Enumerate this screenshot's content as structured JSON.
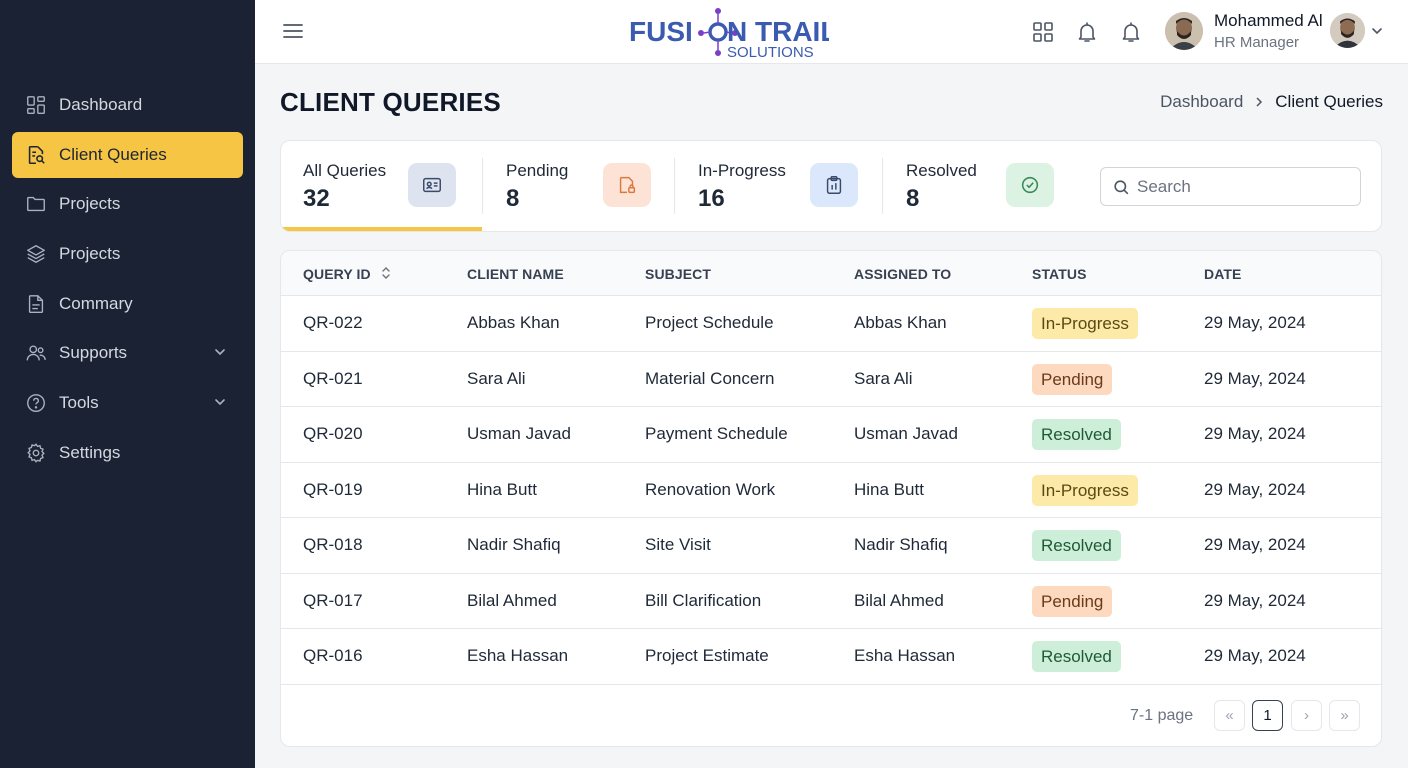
{
  "brand": {
    "name": "FUSION TRAIL",
    "name_part1": "FUSI",
    "name_part2": "N TRAIL",
    "sub": "SOLUTIONS",
    "color_primary": "#3a5bb0",
    "color_accent": "#7a3fc8"
  },
  "colors": {
    "sidebar_bg": "#1a2233",
    "accent": "#f6c544"
  },
  "sidebar": {
    "items": [
      {
        "label": "Dashboard",
        "icon": "dashboard-grid-icon",
        "active": false,
        "has_submenu": false
      },
      {
        "label": "Client Queries",
        "icon": "document-search-icon",
        "active": true,
        "has_submenu": false
      },
      {
        "label": "Projects",
        "icon": "folder-icon",
        "active": false,
        "has_submenu": false
      },
      {
        "label": "Projects",
        "icon": "layers-icon",
        "active": false,
        "has_submenu": false
      },
      {
        "label": "Commary",
        "icon": "file-text-icon",
        "active": false,
        "has_submenu": false
      },
      {
        "label": "Supports",
        "icon": "users-icon",
        "active": false,
        "has_submenu": true
      },
      {
        "label": "Tools",
        "icon": "help-circle-icon",
        "active": false,
        "has_submenu": true
      },
      {
        "label": "Settings",
        "icon": "gear-icon",
        "active": false,
        "has_submenu": false
      }
    ]
  },
  "header": {
    "user_name": "Mohammed Al",
    "user_role": "HR Manager",
    "icons": [
      "hamburger-icon",
      "apps-grid-icon",
      "bell-icon",
      "bell-icon",
      "chevron-down-icon"
    ]
  },
  "page": {
    "title": "CLIENT QUERIES",
    "breadcrumb": {
      "parent": "Dashboard",
      "current": "Client Queries"
    }
  },
  "stats": [
    {
      "label": "All Queries",
      "value": "32",
      "icon": "id-card-icon",
      "icon_bg": "#dde3ef",
      "icon_color": "#3b4a6b"
    },
    {
      "label": "Pending",
      "value": "8",
      "icon": "document-lock-icon",
      "icon_bg": "#fde3d6",
      "icon_color": "#d9793f"
    },
    {
      "label": "In-Progress",
      "value": "16",
      "icon": "clipboard-icon",
      "icon_bg": "#dbe8fb",
      "icon_color": "#3b4a6b"
    },
    {
      "label": "Resolved",
      "value": "8",
      "icon": "check-circle-icon",
      "icon_bg": "#dcf3e3",
      "icon_color": "#3a8a5a"
    }
  ],
  "search": {
    "placeholder": "Search",
    "value": ""
  },
  "table": {
    "columns": [
      "QUERY ID",
      "CLIENT NAME",
      "SUBJECT",
      "ASSIGNED TO",
      "STATUS",
      "DATE"
    ],
    "rows": [
      {
        "id": "QR-022",
        "client": "Abbas Khan",
        "subject": "Project Schedule",
        "assigned": "Abbas Khan",
        "status": "In-Progress",
        "date": "29 May, 2024"
      },
      {
        "id": "QR-021",
        "client": "Sara Ali",
        "subject": "Material Concern",
        "assigned": "Sara Ali",
        "status": "Pending",
        "date": "29 May, 2024"
      },
      {
        "id": "QR-020",
        "client": "Usman Javad",
        "subject": "Payment Schedule",
        "assigned": "Usman Javad",
        "status": "Resolved",
        "date": "29 May, 2024"
      },
      {
        "id": "QR-019",
        "client": "Hina Butt",
        "subject": "Renovation Work",
        "assigned": "Hina Butt",
        "status": "In-Progress",
        "date": "29 May, 2024"
      },
      {
        "id": "QR-018",
        "client": "Nadir Shafiq",
        "subject": "Site Visit",
        "assigned": "Nadir Shafiq",
        "status": "Resolved",
        "date": "29 May, 2024"
      },
      {
        "id": "QR-017",
        "client": "Bilal Ahmed",
        "subject": "Bill Clarification",
        "assigned": "Bilal Ahmed",
        "status": "Pending",
        "date": "29 May, 2024"
      },
      {
        "id": "QR-016",
        "client": "Esha Hassan",
        "subject": "Project Estimate",
        "assigned": "Esha Hassan",
        "status": "Resolved",
        "date": "29 May, 2024"
      }
    ],
    "status_colors": {
      "In-Progress": {
        "bg": "#fde9a8",
        "fg": "#5a4a12"
      },
      "Pending": {
        "bg": "#fdd9bf",
        "fg": "#6a3a1a"
      },
      "Resolved": {
        "bg": "#cdeed8",
        "fg": "#1f5a36"
      }
    }
  },
  "pagination": {
    "text": "7-1 page",
    "current_page": "1",
    "first": "«",
    "prev": "‹",
    "next": "›",
    "last": "»"
  }
}
